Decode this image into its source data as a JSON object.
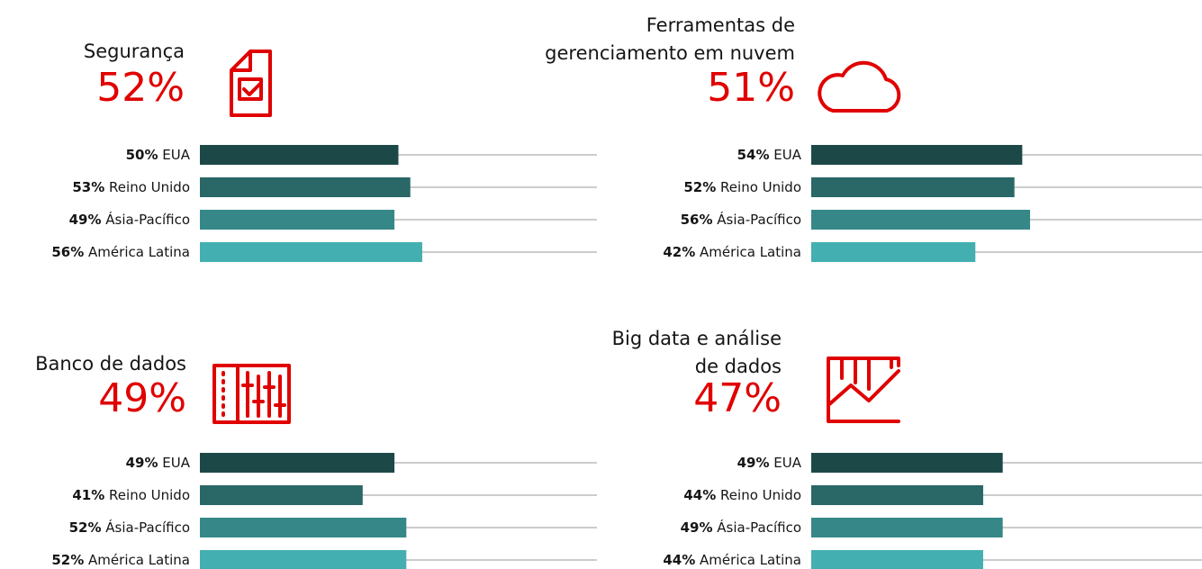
{
  "chart_data": [
    {
      "type": "bar",
      "title": [
        "Segurança"
      ],
      "headline": "52%",
      "categories": [
        "EUA",
        "Reino Unido",
        "Ásia-Pacífico",
        "América Latina"
      ],
      "values": [
        50,
        53,
        49,
        56
      ],
      "value_labels": [
        "50%",
        "53%",
        "49%",
        "56%"
      ],
      "colors": [
        "#1d4848",
        "#2a6767",
        "#368888",
        "#44afb0"
      ],
      "xlim": [
        0,
        100
      ]
    },
    {
      "type": "bar",
      "title": [
        "Ferramentas de",
        "gerenciamento em nuvem"
      ],
      "headline": "51%",
      "categories": [
        "EUA",
        "Reino Unido",
        "Ásia-Pacífico",
        "América Latina"
      ],
      "values": [
        54,
        52,
        56,
        42
      ],
      "value_labels": [
        "54%",
        "52%",
        "56%",
        "42%"
      ],
      "colors": [
        "#1d4848",
        "#2a6767",
        "#368888",
        "#44afb0"
      ],
      "xlim": [
        0,
        100
      ]
    },
    {
      "type": "bar",
      "title": [
        "Banco de dados"
      ],
      "headline": "49%",
      "categories": [
        "EUA",
        "Reino Unido",
        "Ásia-Pacífico",
        "América Latina"
      ],
      "values": [
        49,
        41,
        52,
        52
      ],
      "value_labels": [
        "49%",
        "41%",
        "52%",
        "52%"
      ],
      "colors": [
        "#1d4848",
        "#2a6767",
        "#368888",
        "#44afb0"
      ],
      "xlim": [
        0,
        100
      ]
    },
    {
      "type": "bar",
      "title": [
        "Big data e análise",
        "de dados"
      ],
      "headline": "47%",
      "categories": [
        "EUA",
        "Reino Unido",
        "Ásia-Pacífico",
        "América Latina"
      ],
      "values": [
        49,
        44,
        49,
        44
      ],
      "value_labels": [
        "49%",
        "44%",
        "49%",
        "44%"
      ],
      "colors": [
        "#1d4848",
        "#2a6767",
        "#368888",
        "#44afb0"
      ],
      "xlim": [
        0,
        100
      ]
    }
  ]
}
